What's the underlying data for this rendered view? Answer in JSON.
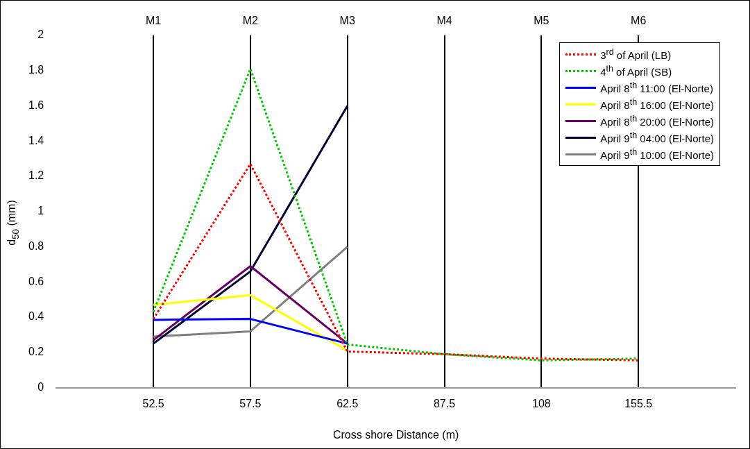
{
  "chart_data": {
    "type": "line",
    "xlabel": "Cross shore Distance (m)",
    "ylabel": "d$_{50}$ (mm)",
    "categories": [
      "52.5",
      "57.5",
      "62.5",
      "87.5",
      "108",
      "155.5"
    ],
    "ylim": [
      0,
      2
    ],
    "yticks": [
      0,
      0.2,
      0.4,
      0.6,
      0.8,
      1,
      1.2,
      1.4,
      1.6,
      1.8,
      2
    ],
    "grid": "x",
    "legend": "top right",
    "marker": "none",
    "annotations": [
      "M1",
      "M2",
      "M3",
      "M4",
      "M5",
      "M6"
    ],
    "series": [
      {
        "name": "3$^{rd}$ of April (LB)",
        "color": "#ff0000",
        "line_style": "dotted",
        "values": [
          0.39,
          1.27,
          0.205,
          0.19,
          0.165,
          0.155
        ]
      },
      {
        "name": "4$^{th}$ of April (SB)",
        "color": "#00c800",
        "line_style": "dotted",
        "values": [
          0.43,
          1.81,
          0.245,
          0.19,
          0.155,
          0.165
        ]
      },
      {
        "name": "April 8$^{th}$ 11:00 (El-Norte)",
        "color": "#0000ff",
        "line_style": "solid",
        "values": [
          0.385,
          0.39,
          0.25,
          null,
          null,
          null
        ]
      },
      {
        "name": "April 8$^{th}$ 16:00 (El-Norte)",
        "color": "#ffff00",
        "line_style": "solid",
        "values": [
          0.47,
          0.525,
          0.21,
          null,
          null,
          null
        ]
      },
      {
        "name": "April 8$^{th}$ 20:00 (El-Norte)",
        "color": "#660066",
        "line_style": "solid",
        "values": [
          0.27,
          0.69,
          0.25,
          null,
          null,
          null
        ]
      },
      {
        "name": "April 9$^{th}$ 04:00 (El-Norte)",
        "color": "#000033",
        "line_style": "solid",
        "values": [
          0.25,
          0.66,
          1.6,
          null,
          null,
          null
        ]
      },
      {
        "name": "April 9$^{th}$ 10:00 (El-Norte)",
        "color": "#808080",
        "line_style": "solid",
        "values": [
          0.29,
          0.32,
          0.8,
          null,
          null,
          null
        ]
      }
    ]
  }
}
